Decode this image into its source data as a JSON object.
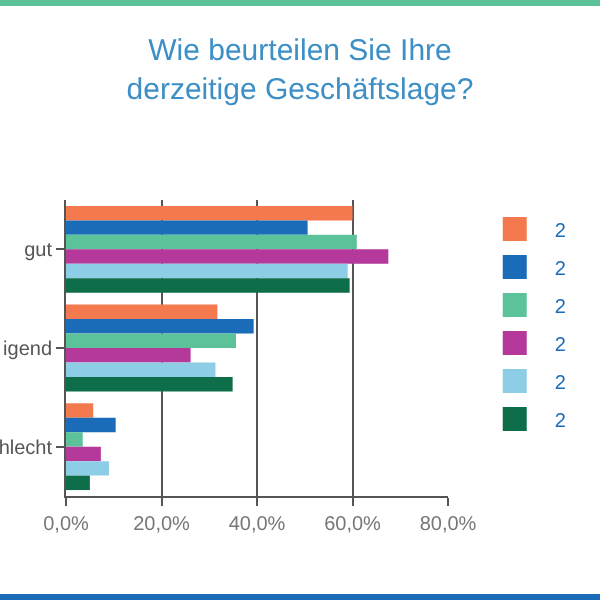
{
  "chart_data": {
    "type": "bar",
    "orientation": "horizontal",
    "title": "Wie beurteilen Sie Ihre\nderzeitige Geschäftslage?",
    "categories": [
      "gut",
      "igend",
      "hlecht"
    ],
    "series": [
      {
        "name": "2",
        "color": "#f4794f",
        "values": [
          60,
          31.7,
          5.7
        ]
      },
      {
        "name": "2",
        "color": "#1a6bb8",
        "values": [
          50.6,
          39.3,
          10.4
        ]
      },
      {
        "name": "2",
        "color": "#5cc29a",
        "values": [
          60.9,
          35.6,
          3.5
        ]
      },
      {
        "name": "2",
        "color": "#b5399b",
        "values": [
          67.5,
          26.1,
          7.3
        ]
      },
      {
        "name": "2",
        "color": "#8ecde6",
        "values": [
          59,
          31.3,
          9
        ]
      },
      {
        "name": "2",
        "color": "#0e6e4a",
        "values": [
          59.4,
          34.9,
          5
        ]
      }
    ],
    "xlim": [
      0,
      80
    ],
    "xticks": [
      {
        "value": 0,
        "label": "0,0%"
      },
      {
        "value": 20,
        "label": "20,0%"
      },
      {
        "value": 40,
        "label": "40,0%"
      },
      {
        "value": 60,
        "label": "60,0%"
      },
      {
        "value": 80,
        "label": "80,0%"
      }
    ],
    "grid": "x",
    "legend": "right"
  }
}
